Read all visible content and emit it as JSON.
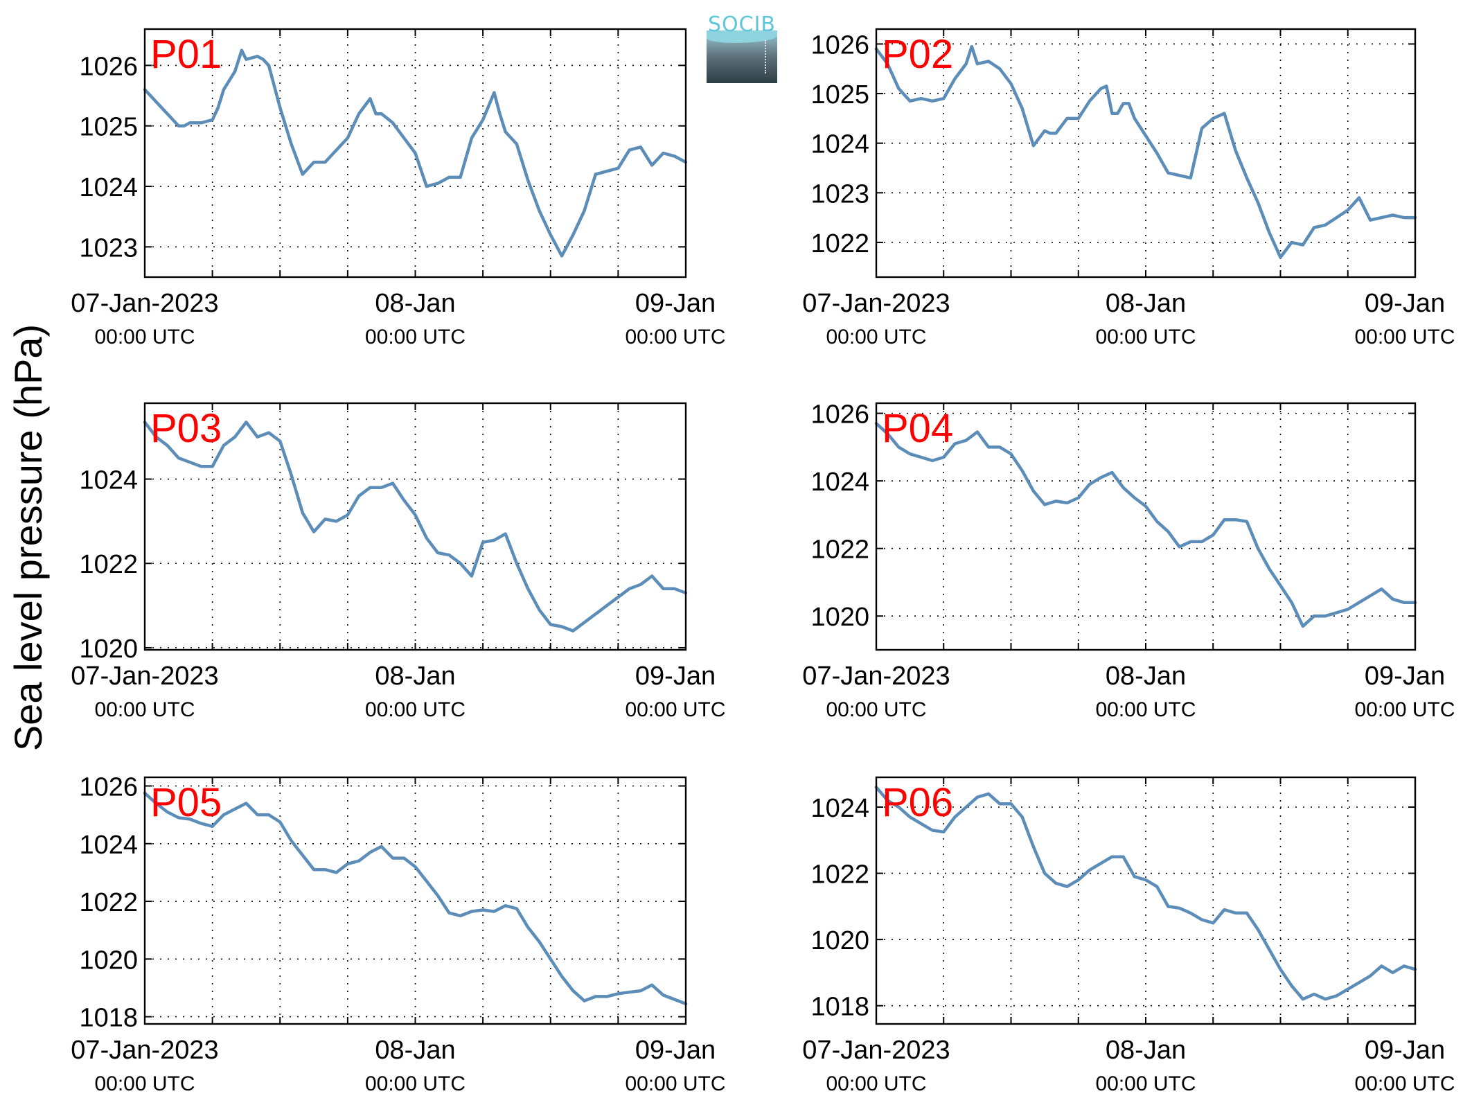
{
  "ylabel": "Sea level pressure (hPa)",
  "x_tick_dates": [
    "07-Jan-2023",
    "08-Jan",
    "09-Jan"
  ],
  "x_tick_times": [
    "00:00 UTC",
    "00:00 UTC",
    "00:00 UTC"
  ],
  "line_color": "#5b8db8",
  "label_color": "#ff0000",
  "logo_text": "SOCIB",
  "chart_data": [
    {
      "type": "line",
      "title": "P01",
      "x_range_hours": [
        0,
        48
      ],
      "ylim": [
        1022.5,
        1026.6
      ],
      "yticks": [
        1023,
        1024,
        1025,
        1026
      ],
      "x": [
        0,
        1,
        2,
        3,
        3.5,
        4,
        5,
        6,
        6.5,
        7,
        8,
        8.6,
        9,
        10,
        10.5,
        11,
        12,
        13,
        14,
        15,
        16,
        17,
        17.5,
        18,
        19,
        20,
        20.5,
        21,
        22,
        23,
        24,
        25,
        26,
        26.5,
        27,
        28,
        29,
        30,
        31,
        31.5,
        32,
        33,
        34,
        35,
        36,
        37,
        38,
        39,
        40,
        41,
        42,
        43,
        44,
        45,
        46,
        47,
        48
      ],
      "values": [
        1025.6,
        1025.4,
        1025.2,
        1025.0,
        1025.0,
        1025.05,
        1025.05,
        1025.1,
        1025.3,
        1025.6,
        1025.9,
        1026.25,
        1026.1,
        1026.15,
        1026.1,
        1026.0,
        1025.3,
        1024.7,
        1024.2,
        1024.4,
        1024.4,
        1024.6,
        1024.7,
        1024.8,
        1025.2,
        1025.45,
        1025.2,
        1025.2,
        1025.05,
        1024.8,
        1024.55,
        1024.0,
        1024.05,
        1024.1,
        1024.15,
        1024.15,
        1024.8,
        1025.1,
        1025.55,
        1025.2,
        1024.9,
        1024.7,
        1024.1,
        1023.6,
        1023.2,
        1022.85,
        1023.2,
        1023.6,
        1024.2,
        1024.25,
        1024.3,
        1024.6,
        1024.65,
        1024.35,
        1024.55,
        1024.5,
        1024.4
      ]
    },
    {
      "type": "line",
      "title": "P02",
      "x_range_hours": [
        0,
        48
      ],
      "ylim": [
        1021.3,
        1026.3
      ],
      "yticks": [
        1022,
        1023,
        1024,
        1025,
        1026
      ],
      "x": [
        0,
        1,
        2,
        3,
        4,
        5,
        6,
        7,
        8,
        8.5,
        9,
        10,
        11,
        12,
        13,
        14,
        15,
        15.5,
        16,
        17,
        18,
        19,
        20,
        20.5,
        21,
        21.5,
        22,
        22.5,
        23,
        24,
        25,
        26,
        27,
        28,
        29,
        30,
        31,
        32,
        33,
        34,
        35,
        36,
        37,
        38,
        39,
        40,
        41,
        42,
        43,
        44,
        45,
        46,
        47,
        48
      ],
      "values": [
        1025.9,
        1025.6,
        1025.1,
        1024.85,
        1024.9,
        1024.85,
        1024.9,
        1025.3,
        1025.6,
        1025.95,
        1025.6,
        1025.65,
        1025.5,
        1025.2,
        1024.7,
        1023.95,
        1024.25,
        1024.2,
        1024.2,
        1024.5,
        1024.5,
        1024.85,
        1025.1,
        1025.15,
        1024.6,
        1024.6,
        1024.8,
        1024.8,
        1024.5,
        1024.15,
        1023.8,
        1023.4,
        1023.35,
        1023.3,
        1024.3,
        1024.5,
        1024.6,
        1023.85,
        1023.3,
        1022.8,
        1022.2,
        1021.7,
        1022.0,
        1021.95,
        1022.3,
        1022.35,
        1022.5,
        1022.65,
        1022.9,
        1022.45,
        1022.5,
        1022.55,
        1022.5,
        1022.5
      ]
    },
    {
      "type": "line",
      "title": "P03",
      "x_range_hours": [
        0,
        48
      ],
      "ylim": [
        1019.95,
        1025.8
      ],
      "yticks": [
        1020,
        1022,
        1024
      ],
      "x": [
        0,
        1,
        2,
        3,
        4,
        5,
        6,
        7,
        8,
        9,
        10,
        11,
        12,
        13,
        14,
        15,
        16,
        17,
        18,
        19,
        20,
        21,
        22,
        23,
        24,
        25,
        26,
        27,
        28,
        29,
        30,
        31,
        32,
        33,
        34,
        35,
        36,
        37,
        38,
        39,
        40,
        41,
        42,
        43,
        44,
        45,
        46,
        47,
        48
      ],
      "values": [
        1025.35,
        1025.0,
        1024.8,
        1024.5,
        1024.4,
        1024.3,
        1024.3,
        1024.8,
        1025.0,
        1025.35,
        1025.0,
        1025.1,
        1024.9,
        1024.1,
        1023.2,
        1022.75,
        1023.05,
        1023.0,
        1023.15,
        1023.6,
        1023.8,
        1023.8,
        1023.9,
        1023.5,
        1023.15,
        1022.6,
        1022.25,
        1022.2,
        1022.0,
        1021.7,
        1022.5,
        1022.55,
        1022.7,
        1022.0,
        1021.4,
        1020.9,
        1020.55,
        1020.5,
        1020.4,
        1020.6,
        1020.8,
        1021.0,
        1021.2,
        1021.4,
        1021.5,
        1021.7,
        1021.4,
        1021.4,
        1021.3
      ]
    },
    {
      "type": "line",
      "title": "P04",
      "x_range_hours": [
        0,
        48
      ],
      "ylim": [
        1019.0,
        1026.3
      ],
      "yticks": [
        1020,
        1022,
        1024,
        1026
      ],
      "x": [
        0,
        1,
        2,
        3,
        4,
        5,
        6,
        7,
        8,
        9,
        10,
        11,
        12,
        13,
        14,
        15,
        16,
        17,
        18,
        19,
        20,
        21,
        22,
        23,
        24,
        25,
        26,
        27,
        28,
        29,
        30,
        31,
        32,
        33,
        34,
        35,
        36,
        37,
        38,
        39,
        40,
        41,
        42,
        43,
        44,
        45,
        46,
        47,
        48
      ],
      "values": [
        1025.7,
        1025.4,
        1025.0,
        1024.8,
        1024.7,
        1024.6,
        1024.7,
        1025.1,
        1025.2,
        1025.45,
        1025.0,
        1025.0,
        1024.8,
        1024.3,
        1023.7,
        1023.3,
        1023.4,
        1023.35,
        1023.5,
        1023.9,
        1024.1,
        1024.25,
        1023.8,
        1023.5,
        1023.25,
        1022.8,
        1022.5,
        1022.05,
        1022.2,
        1022.2,
        1022.4,
        1022.85,
        1022.85,
        1022.8,
        1022.0,
        1021.4,
        1020.9,
        1020.4,
        1019.7,
        1020.0,
        1020.0,
        1020.1,
        1020.2,
        1020.4,
        1020.6,
        1020.8,
        1020.5,
        1020.4,
        1020.4
      ]
    },
    {
      "type": "line",
      "title": "P05",
      "x_range_hours": [
        0,
        48
      ],
      "ylim": [
        1017.75,
        1026.3
      ],
      "yticks": [
        1018,
        1020,
        1022,
        1024,
        1026
      ],
      "x": [
        0,
        1,
        2,
        3,
        4,
        5,
        6,
        7,
        8,
        9,
        10,
        11,
        12,
        13,
        14,
        15,
        16,
        17,
        18,
        19,
        20,
        21,
        22,
        23,
        24,
        25,
        26,
        27,
        28,
        29,
        30,
        31,
        32,
        33,
        34,
        35,
        36,
        37,
        38,
        39,
        40,
        41,
        42,
        43,
        44,
        45,
        46,
        47,
        48
      ],
      "values": [
        1025.75,
        1025.4,
        1025.1,
        1024.9,
        1024.85,
        1024.7,
        1024.6,
        1025.0,
        1025.2,
        1025.4,
        1025.0,
        1025.0,
        1024.75,
        1024.1,
        1023.6,
        1023.1,
        1023.1,
        1023.0,
        1023.3,
        1023.4,
        1023.7,
        1023.9,
        1023.5,
        1023.5,
        1023.2,
        1022.7,
        1022.2,
        1021.6,
        1021.5,
        1021.65,
        1021.7,
        1021.65,
        1021.85,
        1021.75,
        1021.1,
        1020.6,
        1020.0,
        1019.4,
        1018.9,
        1018.55,
        1018.7,
        1018.7,
        1018.8,
        1018.85,
        1018.9,
        1019.1,
        1018.75,
        1018.6,
        1018.45
      ]
    },
    {
      "type": "line",
      "title": "P06",
      "x_range_hours": [
        0,
        48
      ],
      "ylim": [
        1017.45,
        1024.9
      ],
      "yticks": [
        1018,
        1020,
        1022,
        1024
      ],
      "x": [
        0,
        1,
        2,
        3,
        4,
        5,
        6,
        7,
        8,
        9,
        10,
        11,
        12,
        13,
        14,
        15,
        16,
        17,
        18,
        19,
        20,
        21,
        22,
        23,
        24,
        25,
        26,
        27,
        28,
        29,
        30,
        31,
        32,
        33,
        34,
        35,
        36,
        37,
        38,
        39,
        40,
        41,
        42,
        43,
        44,
        45,
        46,
        47,
        48
      ],
      "values": [
        1024.6,
        1024.2,
        1024.0,
        1023.7,
        1023.5,
        1023.3,
        1023.25,
        1023.7,
        1024.0,
        1024.3,
        1024.4,
        1024.1,
        1024.1,
        1023.7,
        1022.8,
        1022.0,
        1021.7,
        1021.6,
        1021.8,
        1022.1,
        1022.3,
        1022.5,
        1022.5,
        1021.9,
        1021.8,
        1021.6,
        1021.0,
        1020.95,
        1020.8,
        1020.6,
        1020.5,
        1020.9,
        1020.8,
        1020.8,
        1020.3,
        1019.7,
        1019.1,
        1018.6,
        1018.2,
        1018.35,
        1018.2,
        1018.3,
        1018.5,
        1018.7,
        1018.9,
        1019.2,
        1019.0,
        1019.2,
        1019.1
      ]
    }
  ]
}
